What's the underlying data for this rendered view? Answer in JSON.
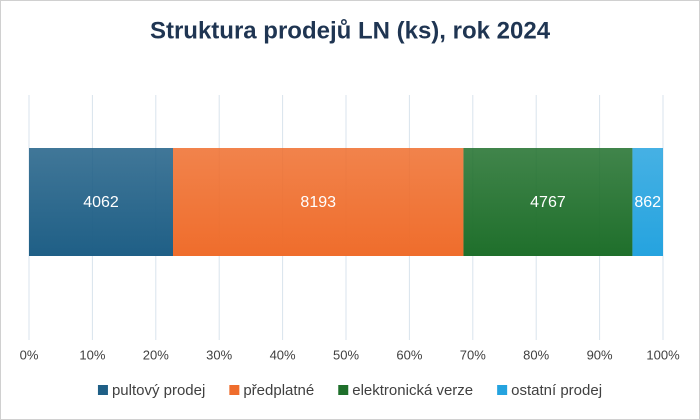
{
  "chart_data": {
    "type": "bar",
    "orientation": "horizontal",
    "stacking": "percent",
    "title": "Struktura prodejů LN (ks), rok 2024",
    "series": [
      {
        "name": "pultový prodej",
        "color": "#1f5f86",
        "values": [
          4062
        ]
      },
      {
        "name": "předplatné",
        "color": "#ef6d2c",
        "values": [
          8193
        ]
      },
      {
        "name": "elektronická verze",
        "color": "#1f6f2b",
        "values": [
          4767
        ]
      },
      {
        "name": "ostatní prodej",
        "color": "#25a3df",
        "values": [
          862
        ]
      }
    ],
    "xlim": [
      0,
      100
    ],
    "xticks": [
      {
        "value": 0,
        "label": "0%"
      },
      {
        "value": 10,
        "label": "10%"
      },
      {
        "value": 20,
        "label": "20%"
      },
      {
        "value": 30,
        "label": "30%"
      },
      {
        "value": 40,
        "label": "40%"
      },
      {
        "value": 50,
        "label": "50%"
      },
      {
        "value": 60,
        "label": "60%"
      },
      {
        "value": 70,
        "label": "70%"
      },
      {
        "value": 80,
        "label": "80%"
      },
      {
        "value": 90,
        "label": "90%"
      },
      {
        "value": 100,
        "label": "100%"
      }
    ],
    "grid": true,
    "legend": "bottom"
  }
}
